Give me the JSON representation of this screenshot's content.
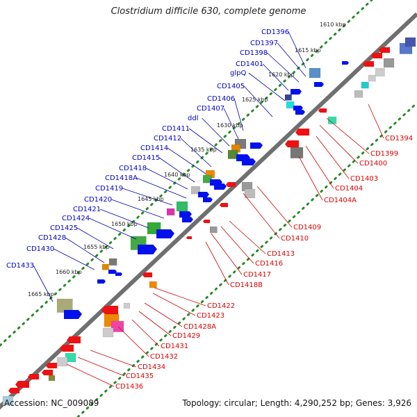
{
  "title": "Clostridium difficile 630, complete genome",
  "footer": {
    "accession": "Accession: NC_009089",
    "summary": "Topology: circular; Length: 4,290,252 bp; Genes: 3,926"
  },
  "colors": {
    "forward_label": "#0000cc",
    "reverse_label": "#dd0000",
    "forward_gene": "#0011ee",
    "reverse_gene": "#ee1111",
    "backbone": "#888888",
    "dots": "#2a8a2a"
  },
  "kbp_ticks": [
    "1610 kbp",
    "1615 kbp",
    "1620 kbp",
    "1625 kbp",
    "1630 kbp",
    "1635 kbp",
    "1640 kbp",
    "1645 kbp",
    "1650 kbp",
    "1655 kbp",
    "1660 kbp",
    "1665 kbp"
  ],
  "forward_labels": [
    "CD1396",
    "CD1397",
    "CD1398",
    "CD1401",
    "glpQ",
    "CD1405",
    "CD1406",
    "CD1407",
    "ddl",
    "CD1411",
    "CD1412",
    "CD1414",
    "CD1415",
    "CD1418",
    "CD1418A",
    "CD1419",
    "CD1420",
    "CD1421",
    "CD1424",
    "CD1425",
    "CD1428",
    "CD1430",
    "CD1433"
  ],
  "reverse_labels": [
    "CD1394",
    "CD1399",
    "CD1400",
    "CD1403",
    "CD1404",
    "CD1404A",
    "CD1409",
    "CD1410",
    "CD1413",
    "CD1416",
    "CD1417",
    "CD1418B",
    "CD1422",
    "CD1423",
    "CD1428A",
    "CD1429",
    "CD1431",
    "CD1432",
    "CD1434",
    "CD1435",
    "CD1436"
  ]
}
